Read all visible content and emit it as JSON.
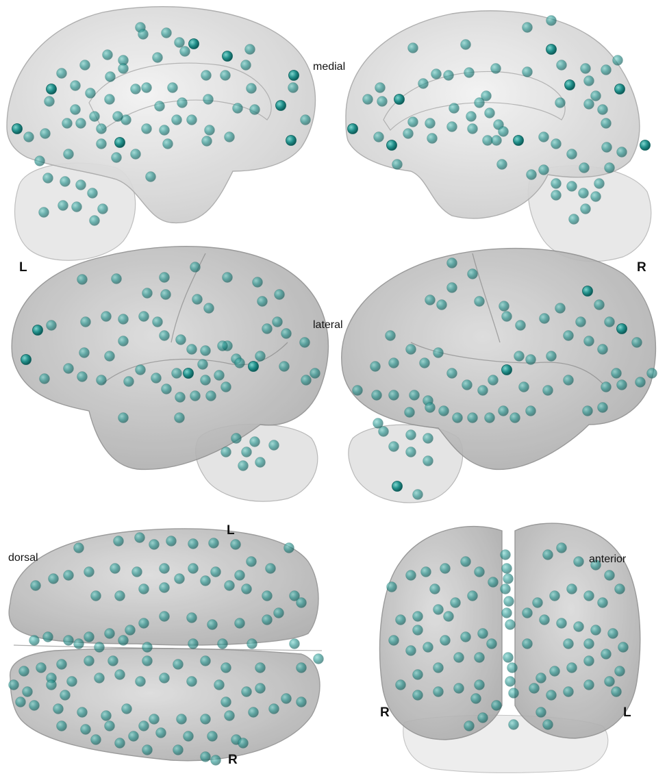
{
  "labels": {
    "medial": "medial",
    "lateral": "lateral",
    "dorsal": "dorsal",
    "anterior": "anterior",
    "left_side": "L",
    "right_side": "R",
    "dorsal_top": "L",
    "dorsal_bottom": "R",
    "anterior_left": "R",
    "anterior_right": "L"
  },
  "colors": {
    "node": "#1f8f8a",
    "node_dark": "#0f6f6c",
    "cortex_fill": "#c8c8c8",
    "cortex_stroke": "#9a9a9a",
    "cerebellum": "#bdbdbd"
  }
}
